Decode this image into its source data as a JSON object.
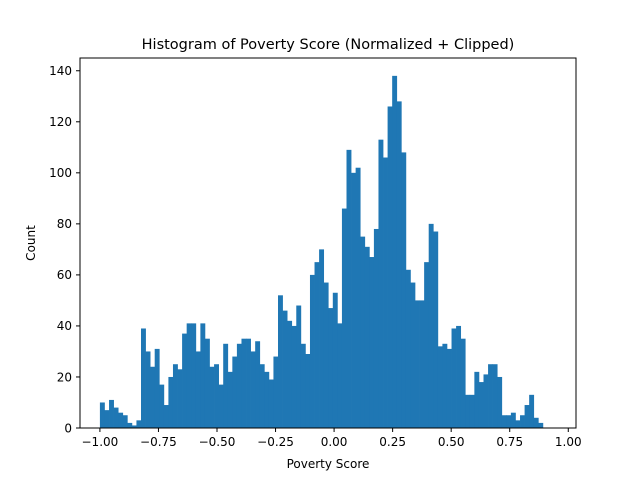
{
  "chart_data": {
    "type": "bar",
    "title": "Histogram of Poverty Score (Normalized + Clipped)",
    "xlabel": "Poverty Score",
    "ylabel": "Count",
    "xlim": [
      -1.085,
      1.033
    ],
    "ylim": [
      0,
      145
    ],
    "xticks": [
      -1.0,
      -0.75,
      -0.5,
      -0.25,
      0.0,
      0.25,
      0.5,
      0.75,
      1.0
    ],
    "xtick_labels": [
      "−1.00",
      "−0.75",
      "−0.50",
      "−0.25",
      "0.00",
      "0.25",
      "0.50",
      "0.75",
      "1.00"
    ],
    "yticks": [
      0,
      20,
      40,
      60,
      80,
      100,
      120,
      140
    ],
    "ytick_labels": [
      "0",
      "20",
      "40",
      "60",
      "80",
      "100",
      "120",
      "140"
    ],
    "grid": false,
    "legend": false,
    "bar_color": "#1f77b4",
    "bin_start": -1.0,
    "bin_width": 0.0195,
    "values": [
      10,
      7,
      11,
      8,
      6,
      5,
      2,
      1,
      3,
      39,
      30,
      24,
      31,
      17,
      9,
      20,
      25,
      23,
      37,
      41,
      41,
      30,
      41,
      35,
      24,
      25,
      17,
      33,
      22,
      28,
      33,
      35,
      35,
      30,
      34,
      25,
      22,
      19,
      28,
      52,
      46,
      42,
      40,
      48,
      33,
      29,
      60,
      65,
      70,
      57,
      47,
      53,
      41,
      86,
      109,
      100,
      102,
      75,
      71,
      67,
      78,
      113,
      106,
      126,
      138,
      128,
      108,
      62,
      57,
      50,
      50,
      65,
      80,
      77,
      32,
      33,
      31,
      39,
      40,
      35,
      13,
      13,
      22,
      18,
      21,
      25,
      25,
      20,
      5,
      5,
      6,
      3,
      5,
      9,
      13,
      4,
      2
    ]
  }
}
